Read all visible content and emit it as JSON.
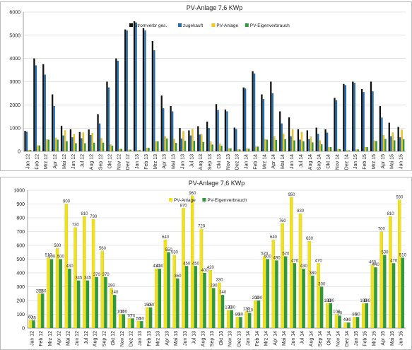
{
  "chart_data": [
    {
      "type": "bar",
      "title": "PV-Anlage 7,6 KWp",
      "ylim": [
        0,
        6000
      ],
      "yticks": [
        0,
        1000,
        2000,
        3000,
        4000,
        5000,
        6000
      ],
      "grid": true,
      "legend_position": "top-right",
      "categories": [
        "Jan 12",
        "Feb 12",
        "Mrz 12",
        "Apr 12",
        "Mai 12",
        "Jun 12",
        "Jul 12",
        "Aug 12",
        "Sep 12",
        "Okt 12",
        "Nov 12",
        "Dez 12",
        "Jan 13",
        "Feb 13",
        "Mrz 13",
        "Apr 13",
        "Mai 13",
        "Jun 13",
        "Jul 13",
        "Aug 13",
        "Sep 13",
        "Okt 13",
        "Nov 13",
        "Dez 13",
        "Jan 14",
        "Feb 14",
        "Mrz 14",
        "Apr 14",
        "Mai 14",
        "Jun 14",
        "Jul 14",
        "Aug 14",
        "Sep 14",
        "Okt 14",
        "Nov 14",
        "Dez 14",
        "Jan 15",
        "Feb 15",
        "Mrz 15",
        "Apr 15",
        "Mai 15",
        "Jun 15"
      ],
      "series": [
        {
          "name": "Stromverbr ges.",
          "color": "#111111",
          "values": [
            880,
            4000,
            3750,
            2450,
            1100,
            950,
            830,
            940,
            1600,
            3000,
            4000,
            5250,
            5600,
            5300,
            4750,
            2400,
            1950,
            1000,
            900,
            1080,
            1280,
            2030,
            1800,
            1020,
            2750,
            3450,
            2450,
            3000,
            1720,
            1460,
            950,
            900,
            1020,
            950,
            2300,
            2900,
            3000,
            2680,
            3000,
            1950,
            1230,
            1050
          ]
        },
        {
          "name": "zugekauft",
          "color": "#1f6fb5",
          "values": [
            840,
            3700,
            3300,
            1950,
            680,
            600,
            560,
            700,
            1200,
            2750,
            3900,
            5200,
            5550,
            5200,
            4350,
            1850,
            1720,
            550,
            680,
            720,
            1000,
            1780,
            1720,
            960,
            2700,
            3350,
            2250,
            2500,
            1200,
            650,
            500,
            520,
            750,
            800,
            2200,
            2850,
            2950,
            2550,
            2580,
            1450,
            650,
            600
          ]
        },
        {
          "name": "PV-Anlage",
          "color": "#f2c81a",
          "values": [
            60,
            250,
            510,
            580,
            900,
            730,
            810,
            790,
            560,
            290,
            100,
            70,
            50,
            150,
            430,
            640,
            530,
            870,
            960,
            720,
            420,
            330,
            130,
            80,
            120,
            200,
            520,
            640,
            760,
            950,
            830,
            630,
            470,
            180,
            100,
            40,
            80,
            180,
            460,
            700,
            810,
            930
          ]
        },
        {
          "name": "PV-Eigenverbrauch",
          "color": "#2e9a3e",
          "values": [
            55,
            250,
            500,
            500,
            430,
            345,
            345,
            370,
            370,
            240,
            100,
            70,
            50,
            150,
            430,
            550,
            360,
            450,
            450,
            400,
            290,
            240,
            130,
            80,
            110,
            200,
            500,
            490,
            520,
            470,
            430,
            380,
            300,
            180,
            90,
            40,
            80,
            180,
            440,
            530,
            470,
            510
          ]
        }
      ]
    },
    {
      "type": "bar",
      "title": "PV-Anlage 7,6 KWp",
      "ylim": [
        0,
        1000
      ],
      "yticks": [
        0,
        100,
        200,
        300,
        400,
        500,
        600,
        700,
        800,
        900,
        1000
      ],
      "grid": true,
      "legend_position": "top-right",
      "show_value_labels": true,
      "categories": [
        "Jan 12",
        "Feb 12",
        "Mrz 12",
        "Apr 12",
        "Mai 12",
        "Jun 12",
        "Jul 12",
        "Aug 12",
        "Sep 12",
        "Okt 12",
        "Nov 12",
        "Dez 12",
        "Jan 13",
        "Feb 13",
        "Mrz 13",
        "Apr 13",
        "Mai 13",
        "Jun 13",
        "Jul 13",
        "Aug 13",
        "Sep 13",
        "Okt 13",
        "Nov 13",
        "Dez 13",
        "Jan 14",
        "Feb 14",
        "Mrz 14",
        "Apr 14",
        "Mai 14",
        "Jun 14",
        "Jul 14",
        "Aug 14",
        "Sep 14",
        "Okt 14",
        "Nov 14",
        "Dez 14",
        "Jan 15",
        "Feb 15",
        "Mrz 15",
        "Apr 15",
        "Mai 15",
        "Jun 15"
      ],
      "series": [
        {
          "name": "PV-Anlage",
          "color": "#f2e21a",
          "values": [
            60,
            250,
            510,
            580,
            900,
            730,
            810,
            790,
            560,
            290,
            100,
            70,
            50,
            150,
            430,
            640,
            530,
            870,
            960,
            720,
            420,
            330,
            130,
            80,
            120,
            200,
            520,
            640,
            760,
            950,
            830,
            630,
            470,
            180,
            100,
            40,
            80,
            180,
            460,
            700,
            810,
            930
          ]
        },
        {
          "name": "PV-Eigenverbrauch",
          "color": "#2e9a3e",
          "values": [
            55,
            250,
            500,
            500,
            430,
            345,
            345,
            370,
            370,
            240,
            100,
            70,
            50,
            150,
            430,
            550,
            360,
            450,
            450,
            400,
            290,
            240,
            130,
            80,
            110,
            200,
            500,
            490,
            520,
            470,
            430,
            380,
            300,
            180,
            90,
            40,
            80,
            180,
            440,
            530,
            470,
            510
          ]
        }
      ]
    }
  ]
}
